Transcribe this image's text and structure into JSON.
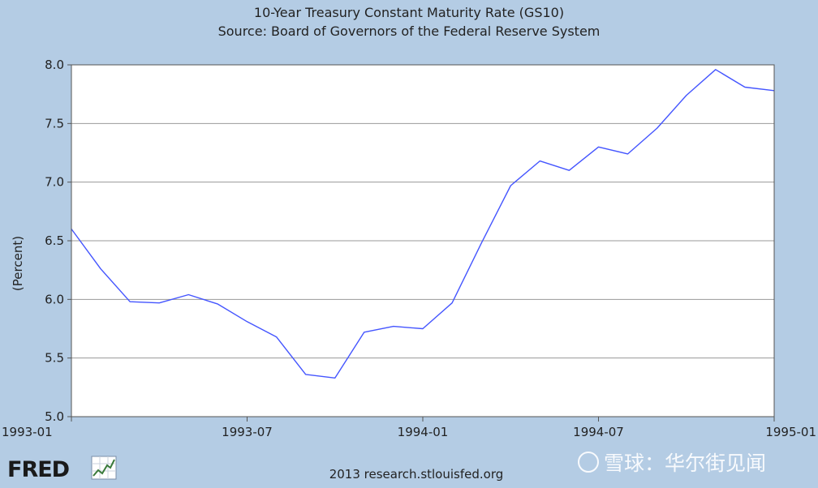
{
  "chart_data": {
    "type": "line",
    "title": "10-Year Treasury Constant Maturity Rate (GS10)",
    "subtitle": "Source: Board of Governors of the Federal Reserve System",
    "xlabel": "",
    "ylabel": "(Percent)",
    "ylim": [
      5.0,
      8.0
    ],
    "yticks": [
      "5.0",
      "5.5",
      "6.0",
      "6.5",
      "7.0",
      "7.5",
      "8.0"
    ],
    "xlim": [
      "1993-01",
      "1995-01"
    ],
    "xticks": [
      "1993-01",
      "1993-07",
      "1994-01",
      "1994-07",
      "1995-01"
    ],
    "grid": true,
    "line_color": "#4455ff",
    "series": [
      {
        "x": [
          "1993-01",
          "1993-02",
          "1993-03",
          "1993-04",
          "1993-05",
          "1993-06",
          "1993-07",
          "1993-08",
          "1993-09",
          "1993-10",
          "1993-11",
          "1993-12",
          "1994-01",
          "1994-02",
          "1994-03",
          "1994-04",
          "1994-05",
          "1994-06",
          "1994-07",
          "1994-08",
          "1994-09",
          "1994-10",
          "1994-11",
          "1994-12",
          "1995-01"
        ],
        "values": [
          6.6,
          6.26,
          5.98,
          5.97,
          6.04,
          5.96,
          5.81,
          5.68,
          5.36,
          5.33,
          5.72,
          5.77,
          5.75,
          5.97,
          6.48,
          6.97,
          7.18,
          7.1,
          7.3,
          7.24,
          7.46,
          7.74,
          7.96,
          7.81,
          7.78
        ]
      }
    ]
  },
  "footer": {
    "logo_text": "FRED",
    "credit": "2013 research.stlouisfed.org"
  },
  "watermark": {
    "text": "雪球：华尔街见闻"
  },
  "colors": {
    "background": "#b4cce4",
    "plot_background": "#ffffff",
    "grid": "#999999",
    "line": "#4455ff"
  }
}
